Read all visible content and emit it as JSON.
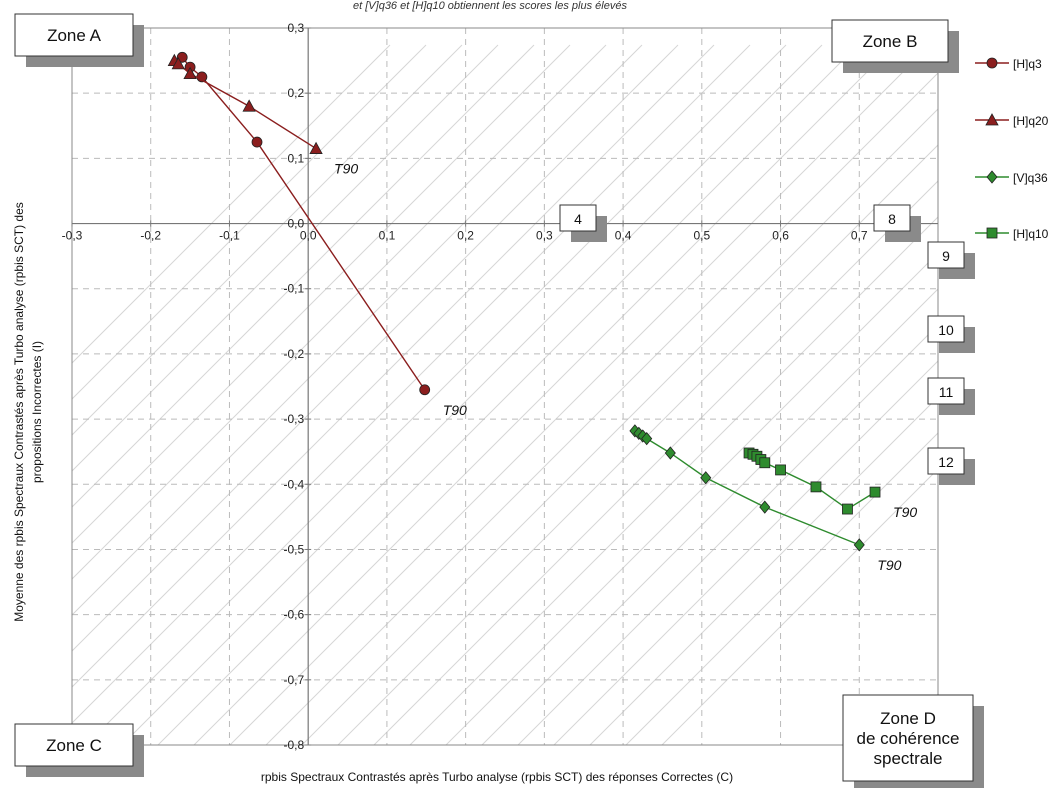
{
  "chart_data": {
    "type": "line",
    "top_note": "et [V]q36 et [H]q10 obtiennent les scores les plus élevés",
    "xlabel": "rpbis Spectraux Contrastés après Turbo analyse (rpbis SCT) des réponses Correctes (C)",
    "ylabel_lines": [
      "Moyenne des rpbis Spectraux Contrastés après Turbo analyse (rpbis SCT) des",
      "propositions Incorrectes (I)"
    ],
    "xlim": [
      -0.3,
      0.8
    ],
    "ylim": [
      -0.8,
      0.3
    ],
    "x_tick_labels": [
      "-0,3",
      "-0,2",
      "-0,1",
      "0,0",
      "0,1",
      "0,2",
      "0,3",
      "0,4",
      "0,5",
      "0,6",
      "0,7"
    ],
    "y_tick_labels": [
      "0,3",
      "0,2",
      "0,1",
      "0,0",
      "-0,1",
      "-0,2",
      "-0,3",
      "-0,4",
      "-0,5",
      "-0,6",
      "-0,7",
      "-0,8"
    ],
    "grid": true,
    "legend_position": "right",
    "series": [
      {
        "name": "[H]q3",
        "marker": "circle",
        "color": "#8b1e1e",
        "x": [
          -0.16,
          -0.15,
          -0.135,
          -0.065,
          0.148
        ],
        "y": [
          0.255,
          0.24,
          0.225,
          0.125,
          -0.255
        ]
      },
      {
        "name": "[H]q20",
        "marker": "triangle",
        "color": "#8b1e1e",
        "x": [
          -0.17,
          -0.165,
          -0.15,
          -0.075,
          0.01
        ],
        "y": [
          0.25,
          0.245,
          0.23,
          0.18,
          0.115
        ]
      },
      {
        "name": "[V]q36",
        "marker": "diamond",
        "color": "#2e8b2e",
        "x": [
          0.415,
          0.42,
          0.425,
          0.43,
          0.46,
          0.505,
          0.58,
          0.7
        ],
        "y": [
          -0.318,
          -0.322,
          -0.326,
          -0.33,
          -0.352,
          -0.39,
          -0.435,
          -0.493
        ]
      },
      {
        "name": "[H]q10",
        "marker": "square",
        "color": "#2e8b2e",
        "x": [
          0.56,
          0.565,
          0.57,
          0.575,
          0.58,
          0.6,
          0.645,
          0.685,
          0.72
        ],
        "y": [
          -0.352,
          -0.354,
          -0.357,
          -0.362,
          -0.367,
          -0.378,
          -0.404,
          -0.438,
          -0.412
        ]
      }
    ],
    "annotations": [
      {
        "text": "T90",
        "x": 0.01,
        "y": 0.115
      },
      {
        "text": "T90",
        "x": 0.148,
        "y": -0.255
      },
      {
        "text": "T90",
        "x": 0.72,
        "y": -0.412
      },
      {
        "text": "T90",
        "x": 0.7,
        "y": -0.493
      }
    ],
    "zones": [
      "Zone A",
      "Zone B",
      "Zone C",
      "Zone D de cohérence spectrale"
    ],
    "numbered_boxes": [
      "4",
      "8",
      "9",
      "10",
      "11",
      "12"
    ]
  }
}
